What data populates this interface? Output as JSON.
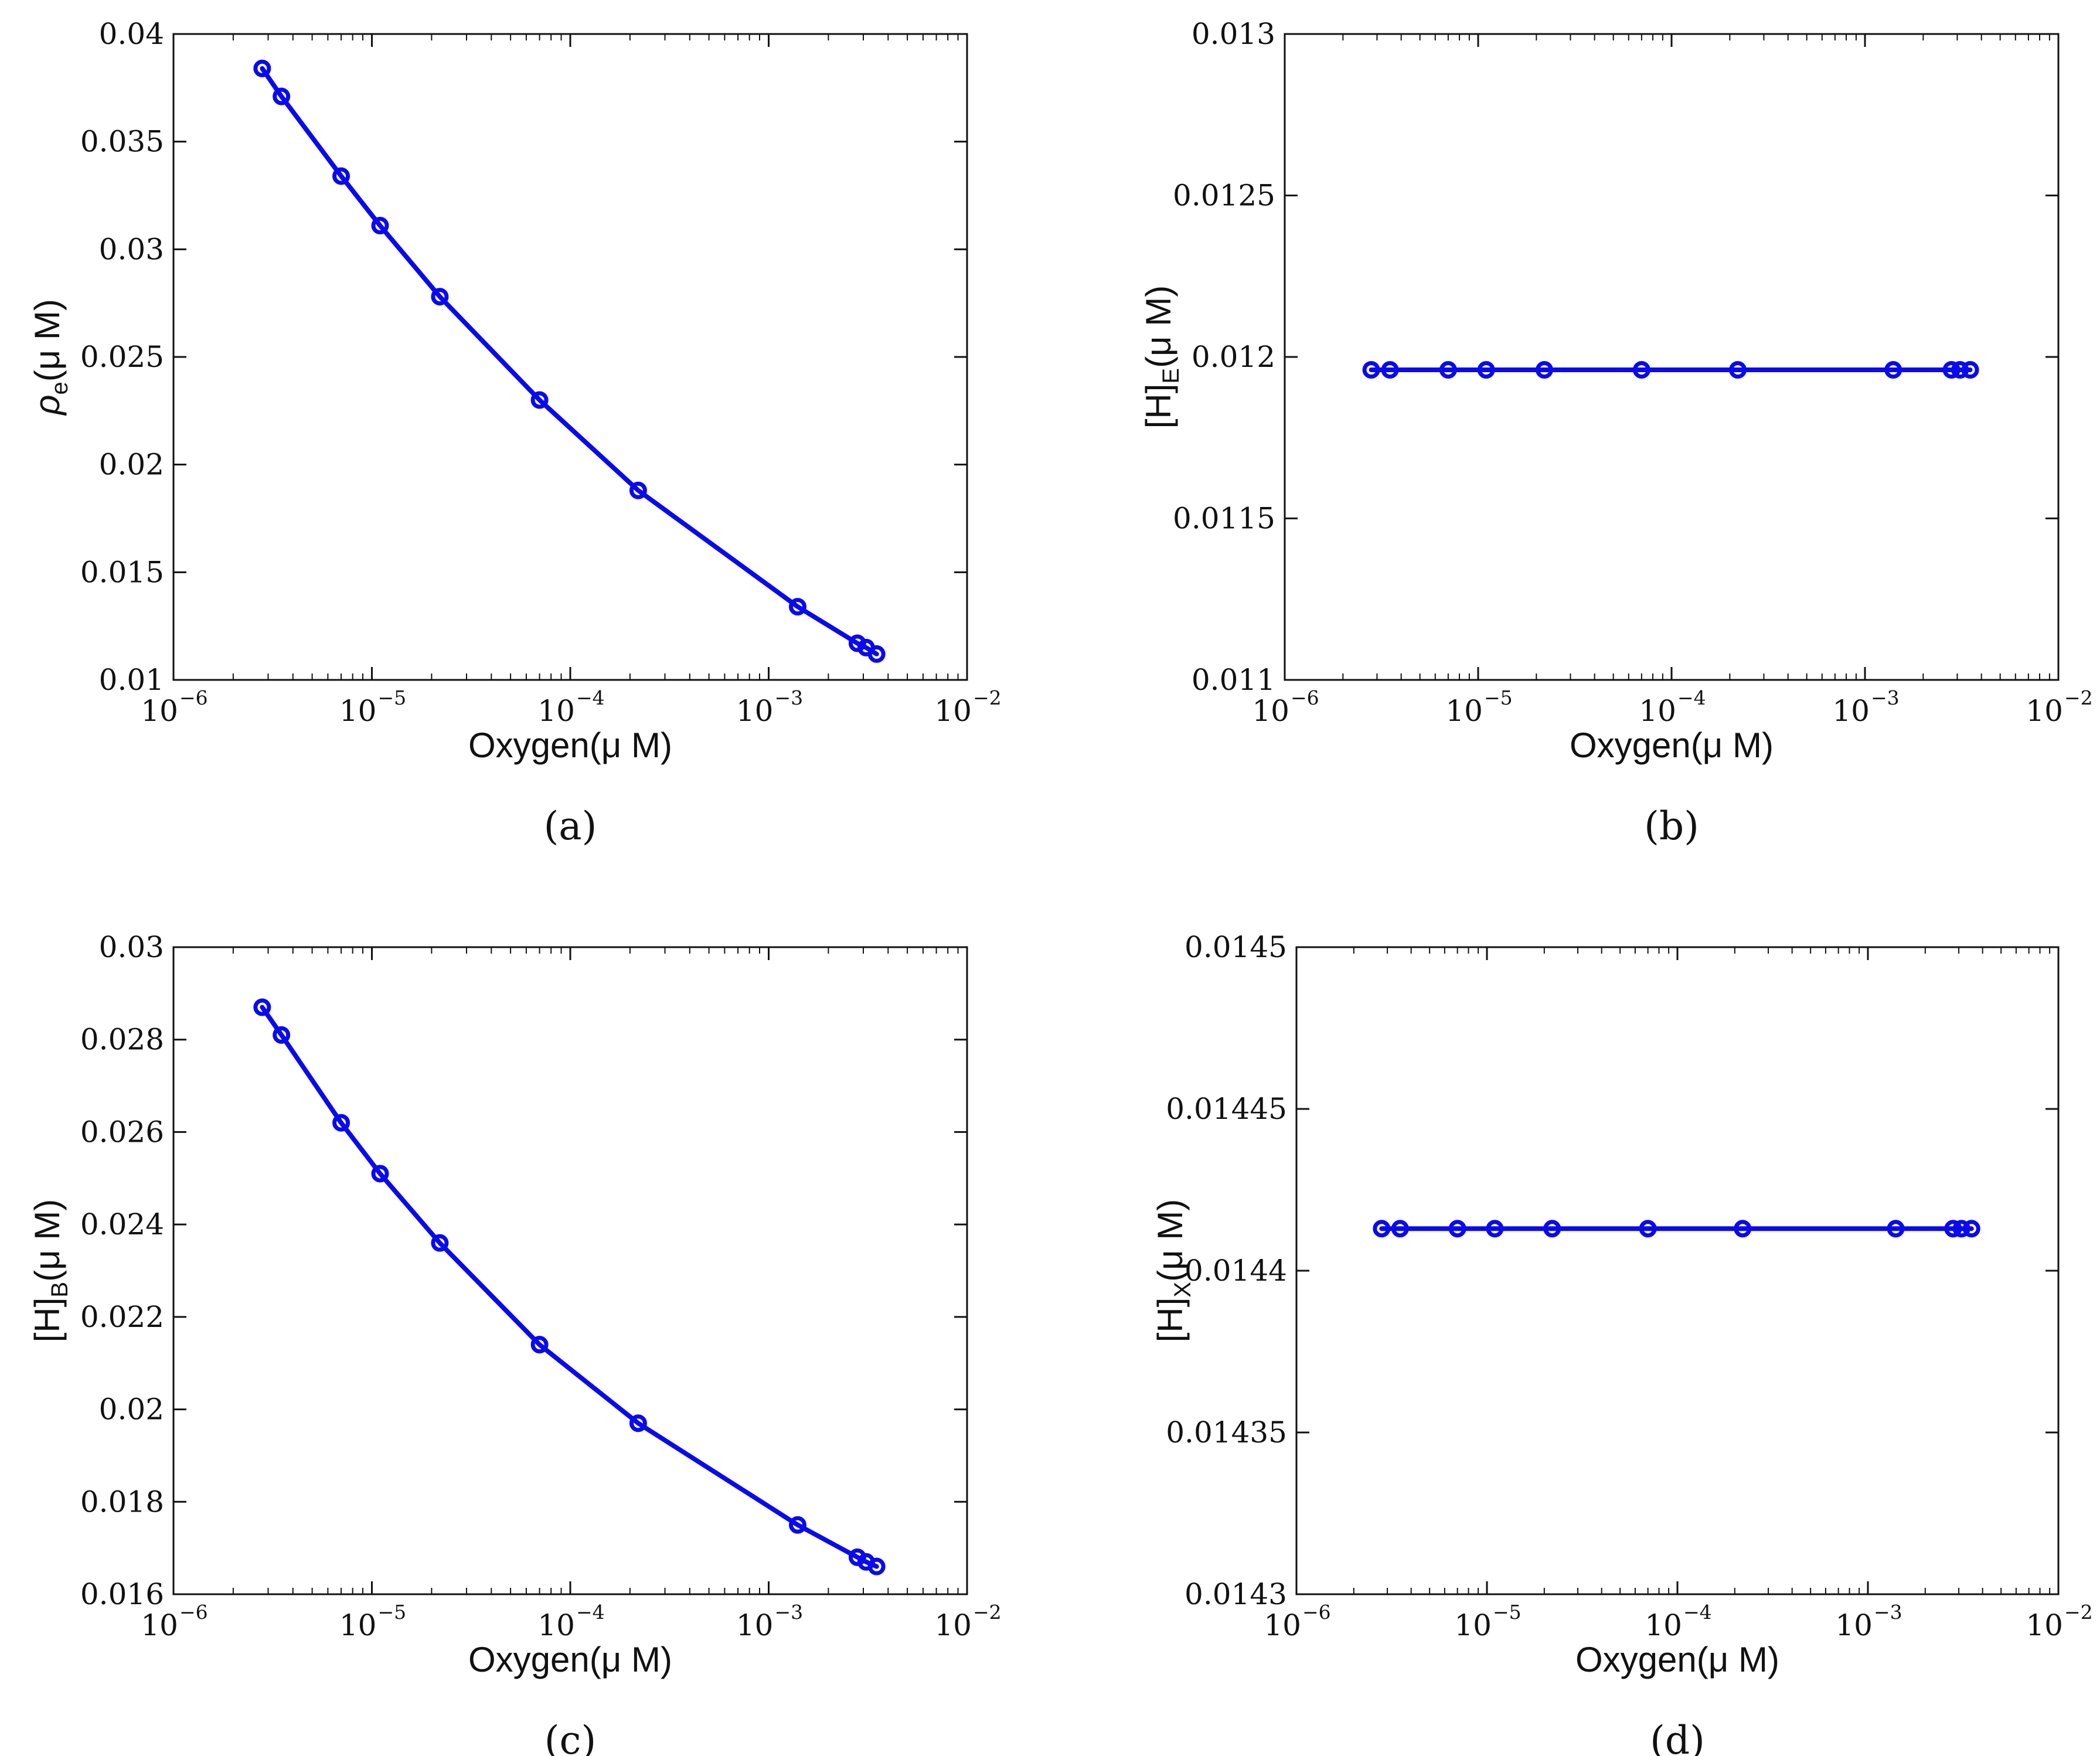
{
  "figure": {
    "line_color": "#0a0aee",
    "axis_color": "#111111"
  },
  "chart_data": [
    {
      "panel": "a",
      "panel_label": "(a)",
      "type": "line",
      "xscale": "log",
      "xlim": [
        1e-06,
        0.01
      ],
      "ylim": [
        0.01,
        0.04
      ],
      "xlabel": "Oxygen(μ M)",
      "ylabel": {
        "main": "ρ",
        "sub": "e",
        "rest": "(μ M)"
      },
      "x_ticks": [
        {
          "base": "10",
          "exp": "−6",
          "value": 1e-06
        },
        {
          "base": "10",
          "exp": "−5",
          "value": 1e-05
        },
        {
          "base": "10",
          "exp": "−4",
          "value": 0.0001
        },
        {
          "base": "10",
          "exp": "−3",
          "value": 0.001
        },
        {
          "base": "10",
          "exp": "−2",
          "value": 0.01
        }
      ],
      "y_ticks": [
        {
          "label": "0.01",
          "value": 0.01
        },
        {
          "label": "0.015",
          "value": 0.015
        },
        {
          "label": "0.02",
          "value": 0.02
        },
        {
          "label": "0.025",
          "value": 0.025
        },
        {
          "label": "0.03",
          "value": 0.03
        },
        {
          "label": "0.035",
          "value": 0.035
        },
        {
          "label": "0.04",
          "value": 0.04
        }
      ],
      "series": [
        {
          "name": "",
          "marker": "circle",
          "x": [
            2.8e-06,
            3.5e-06,
            7e-06,
            1.1e-05,
            2.2e-05,
            7e-05,
            0.00022,
            0.0014,
            0.0028,
            0.0031,
            0.0035
          ],
          "y": [
            0.0384,
            0.0371,
            0.0334,
            0.0311,
            0.0278,
            0.023,
            0.0188,
            0.0134,
            0.0117,
            0.0115,
            0.0112
          ]
        }
      ]
    },
    {
      "panel": "b",
      "panel_label": "(b)",
      "type": "line",
      "xscale": "log",
      "xlim": [
        1e-06,
        0.01
      ],
      "ylim": [
        0.011,
        0.013
      ],
      "xlabel": "Oxygen(μ M)",
      "ylabel": {
        "main": "[H]",
        "sub": "E",
        "rest": "(μ M)"
      },
      "x_ticks": [
        {
          "base": "10",
          "exp": "−6",
          "value": 1e-06
        },
        {
          "base": "10",
          "exp": "−5",
          "value": 1e-05
        },
        {
          "base": "10",
          "exp": "−4",
          "value": 0.0001
        },
        {
          "base": "10",
          "exp": "−3",
          "value": 0.001
        },
        {
          "base": "10",
          "exp": "−2",
          "value": 0.01
        }
      ],
      "y_ticks": [
        {
          "label": "0.011",
          "value": 0.011
        },
        {
          "label": "0.0115",
          "value": 0.0115
        },
        {
          "label": "0.012",
          "value": 0.012
        },
        {
          "label": "0.0125",
          "value": 0.0125
        },
        {
          "label": "0.013",
          "value": 0.013
        }
      ],
      "series": [
        {
          "name": "",
          "marker": "circle",
          "x": [
            2.8e-06,
            3.5e-06,
            7e-06,
            1.1e-05,
            2.2e-05,
            7e-05,
            0.00022,
            0.0014,
            0.0028,
            0.0031,
            0.0035
          ],
          "y": [
            0.01196,
            0.01196,
            0.01196,
            0.01196,
            0.01196,
            0.01196,
            0.01196,
            0.01196,
            0.01196,
            0.01196,
            0.01196
          ]
        }
      ]
    },
    {
      "panel": "c",
      "panel_label": "(c)",
      "type": "line",
      "xscale": "log",
      "xlim": [
        1e-06,
        0.01
      ],
      "ylim": [
        0.016,
        0.03
      ],
      "xlabel": "Oxygen(μ M)",
      "ylabel": {
        "main": "[H]",
        "sub": "B",
        "rest": "(μ M)"
      },
      "x_ticks": [
        {
          "base": "10",
          "exp": "−6",
          "value": 1e-06
        },
        {
          "base": "10",
          "exp": "−5",
          "value": 1e-05
        },
        {
          "base": "10",
          "exp": "−4",
          "value": 0.0001
        },
        {
          "base": "10",
          "exp": "−3",
          "value": 0.001
        },
        {
          "base": "10",
          "exp": "−2",
          "value": 0.01
        }
      ],
      "y_ticks": [
        {
          "label": "0.016",
          "value": 0.016
        },
        {
          "label": "0.018",
          "value": 0.018
        },
        {
          "label": "0.02",
          "value": 0.02
        },
        {
          "label": "0.022",
          "value": 0.022
        },
        {
          "label": "0.024",
          "value": 0.024
        },
        {
          "label": "0.026",
          "value": 0.026
        },
        {
          "label": "0.028",
          "value": 0.028
        },
        {
          "label": "0.03",
          "value": 0.03
        }
      ],
      "series": [
        {
          "name": "",
          "marker": "circle",
          "x": [
            2.8e-06,
            3.5e-06,
            7e-06,
            1.1e-05,
            2.2e-05,
            7e-05,
            0.00022,
            0.0014,
            0.0028,
            0.0031,
            0.0035
          ],
          "y": [
            0.0287,
            0.0281,
            0.0262,
            0.0251,
            0.0236,
            0.0214,
            0.0197,
            0.0175,
            0.0168,
            0.0167,
            0.0166
          ]
        }
      ]
    },
    {
      "panel": "d",
      "panel_label": "(d)",
      "type": "line",
      "xscale": "log",
      "xlim": [
        1e-06,
        0.01
      ],
      "ylim": [
        0.0143,
        0.0145
      ],
      "xlabel": "Oxygen(μ M)",
      "ylabel": {
        "main": "[H]",
        "sub": "X",
        "rest": "(μ M)"
      },
      "x_ticks": [
        {
          "base": "10",
          "exp": "−6",
          "value": 1e-06
        },
        {
          "base": "10",
          "exp": "−5",
          "value": 1e-05
        },
        {
          "base": "10",
          "exp": "−4",
          "value": 0.0001
        },
        {
          "base": "10",
          "exp": "−3",
          "value": 0.001
        },
        {
          "base": "10",
          "exp": "−2",
          "value": 0.01
        }
      ],
      "y_ticks": [
        {
          "label": "0.0143",
          "value": 0.0143
        },
        {
          "label": "0.01435",
          "value": 0.01435
        },
        {
          "label": "0.0144",
          "value": 0.0144
        },
        {
          "label": "0.01445",
          "value": 0.01445
        },
        {
          "label": "0.0145",
          "value": 0.0145
        }
      ],
      "series": [
        {
          "name": "",
          "marker": "circle",
          "x": [
            2.8e-06,
            3.5e-06,
            7e-06,
            1.1e-05,
            2.2e-05,
            7e-05,
            0.00022,
            0.0014,
            0.0028,
            0.0031,
            0.0035
          ],
          "y": [
            0.014413,
            0.014413,
            0.014413,
            0.014413,
            0.014413,
            0.014413,
            0.014413,
            0.014413,
            0.014413,
            0.014413,
            0.014413
          ]
        }
      ]
    }
  ]
}
